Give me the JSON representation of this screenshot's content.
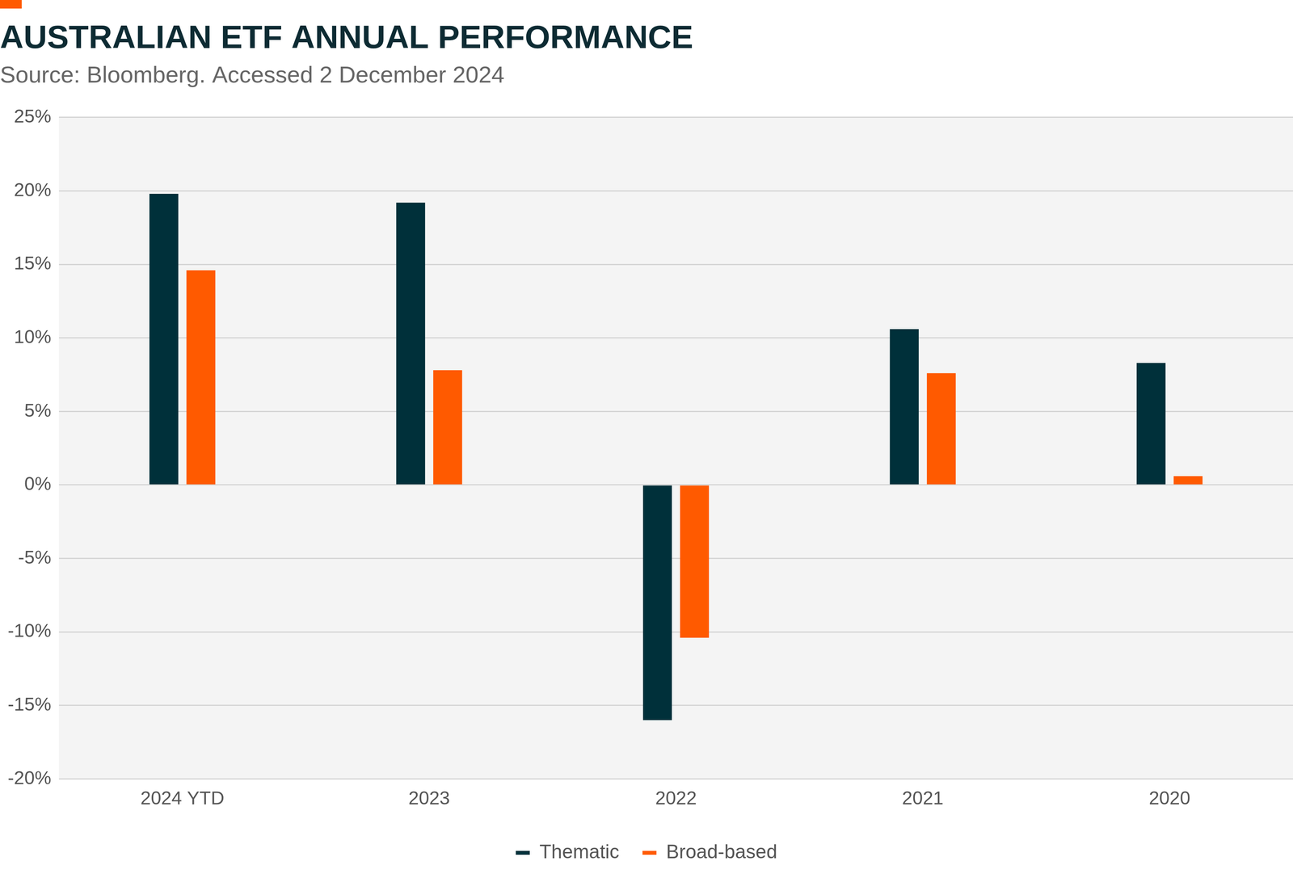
{
  "chart_data": {
    "type": "bar",
    "title": "AUSTRALIAN ETF ANNUAL PERFORMANCE",
    "subtitle": "Source: Bloomberg. Accessed 2 December 2024",
    "categories": [
      "2024 YTD",
      "2023",
      "2022",
      "2021",
      "2020"
    ],
    "series": [
      {
        "name": "Thematic",
        "color": "#00303a",
        "values": [
          19.8,
          19.2,
          -16.0,
          10.6,
          8.3
        ]
      },
      {
        "name": "Broad-based",
        "color": "#ff5a00",
        "values": [
          14.6,
          7.8,
          -10.4,
          7.6,
          0.6
        ]
      }
    ],
    "ylim": [
      -20,
      25
    ],
    "yticks": [
      {
        "value": -20,
        "label": "-20%"
      },
      {
        "value": -15,
        "label": "-15%"
      },
      {
        "value": -10,
        "label": "-10%"
      },
      {
        "value": -5,
        "label": "-5%"
      },
      {
        "value": 0,
        "label": "0%"
      },
      {
        "value": 5,
        "label": "5%"
      },
      {
        "value": 10,
        "label": "10%"
      },
      {
        "value": 15,
        "label": "15%"
      },
      {
        "value": 20,
        "label": "20%"
      },
      {
        "value": 25,
        "label": "25%"
      }
    ],
    "grid": true,
    "legend": "bottom"
  }
}
